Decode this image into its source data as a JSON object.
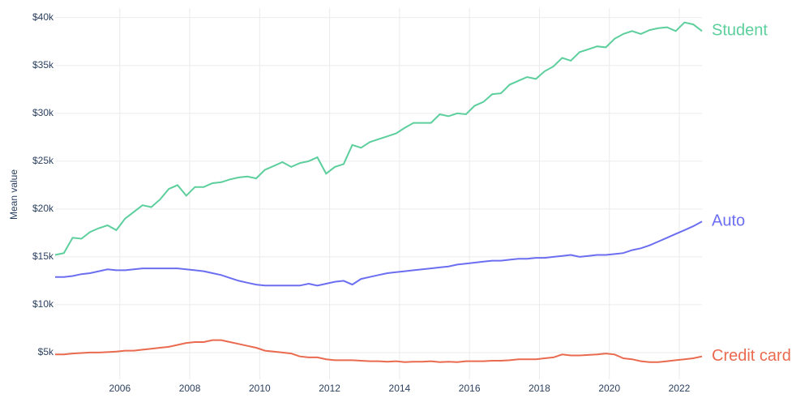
{
  "chart_data": {
    "type": "line",
    "y_label": "Mean value",
    "x": [
      2004.15,
      2004.4,
      2004.65,
      2004.9,
      2005.15,
      2005.4,
      2005.65,
      2005.9,
      2006.15,
      2006.4,
      2006.65,
      2006.9,
      2007.15,
      2007.4,
      2007.65,
      2007.9,
      2008.15,
      2008.4,
      2008.65,
      2008.9,
      2009.15,
      2009.4,
      2009.65,
      2009.9,
      2010.15,
      2010.4,
      2010.65,
      2010.9,
      2011.15,
      2011.4,
      2011.65,
      2011.9,
      2012.15,
      2012.4,
      2012.65,
      2012.9,
      2013.15,
      2013.4,
      2013.65,
      2013.9,
      2014.15,
      2014.4,
      2014.65,
      2014.9,
      2015.15,
      2015.4,
      2015.65,
      2015.9,
      2016.15,
      2016.4,
      2016.65,
      2016.9,
      2017.15,
      2017.4,
      2017.65,
      2017.9,
      2018.15,
      2018.4,
      2018.65,
      2018.9,
      2019.15,
      2019.4,
      2019.65,
      2019.9,
      2020.15,
      2020.4,
      2020.65,
      2020.9,
      2021.15,
      2021.4,
      2021.65,
      2021.9,
      2022.15,
      2022.4,
      2022.65
    ],
    "series": [
      {
        "name": "Student",
        "color": "#5ccf9c",
        "values": [
          15200,
          15400,
          17000,
          16900,
          17600,
          18000,
          18300,
          17800,
          19000,
          19700,
          20400,
          20200,
          21000,
          22100,
          22500,
          21400,
          22300,
          22300,
          22700,
          22800,
          23100,
          23300,
          23400,
          23200,
          24100,
          24500,
          24900,
          24400,
          24800,
          25000,
          25400,
          23700,
          24400,
          24700,
          26700,
          26400,
          27000,
          27300,
          27600,
          27900,
          28500,
          29000,
          29000,
          29000,
          29900,
          29700,
          30000,
          29900,
          30800,
          31200,
          32000,
          32100,
          33000,
          33400,
          33800,
          33600,
          34400,
          34900,
          35800,
          35500,
          36400,
          36700,
          37000,
          36900,
          37800,
          38300,
          38600,
          38300,
          38700,
          38900,
          39000,
          38600,
          39500,
          39300,
          38600
        ]
      },
      {
        "name": "Auto",
        "color": "#6b6ef0",
        "values": [
          12900,
          12900,
          13000,
          13200,
          13300,
          13500,
          13700,
          13600,
          13600,
          13700,
          13800,
          13800,
          13800,
          13800,
          13800,
          13700,
          13600,
          13500,
          13300,
          13100,
          12800,
          12500,
          12300,
          12100,
          12000,
          12000,
          12000,
          12000,
          12000,
          12200,
          12000,
          12200,
          12400,
          12500,
          12100,
          12700,
          12900,
          13100,
          13300,
          13400,
          13500,
          13600,
          13700,
          13800,
          13900,
          14000,
          14200,
          14300,
          14400,
          14500,
          14600,
          14600,
          14700,
          14800,
          14800,
          14900,
          14900,
          15000,
          15100,
          15200,
          15000,
          15100,
          15200,
          15200,
          15300,
          15400,
          15700,
          15900,
          16200,
          16600,
          17000,
          17400,
          17800,
          18200,
          18700
        ]
      },
      {
        "name": "Credit card",
        "color": "#ea6a4f",
        "values": [
          4800,
          4800,
          4900,
          4950,
          5000,
          5000,
          5050,
          5100,
          5200,
          5200,
          5300,
          5400,
          5500,
          5600,
          5800,
          6000,
          6100,
          6100,
          6300,
          6300,
          6100,
          5900,
          5700,
          5500,
          5200,
          5100,
          5000,
          4900,
          4600,
          4500,
          4500,
          4300,
          4200,
          4200,
          4200,
          4150,
          4100,
          4100,
          4050,
          4100,
          4000,
          4050,
          4050,
          4100,
          4000,
          4050,
          4000,
          4100,
          4100,
          4100,
          4150,
          4150,
          4200,
          4300,
          4300,
          4300,
          4400,
          4500,
          4800,
          4700,
          4700,
          4750,
          4800,
          4900,
          4800,
          4400,
          4300,
          4100,
          4000,
          4000,
          4100,
          4200,
          4300,
          4400,
          4600
        ]
      }
    ],
    "xlim": [
      2004.15,
      2022.65
    ],
    "xticks": [
      2006,
      2008,
      2010,
      2012,
      2014,
      2016,
      2018,
      2020,
      2022
    ],
    "ylim": [
      2200,
      41000
    ],
    "yticks": [
      {
        "value": 5000,
        "label": "$5k"
      },
      {
        "value": 10000,
        "label": "$10k"
      },
      {
        "value": 15000,
        "label": "$15k"
      },
      {
        "value": 20000,
        "label": "$20k"
      },
      {
        "value": 25000,
        "label": "$25k"
      },
      {
        "value": 30000,
        "label": "$30k"
      },
      {
        "value": 35000,
        "label": "$35k"
      },
      {
        "value": 40000,
        "label": "$40k"
      }
    ],
    "grid": true
  }
}
